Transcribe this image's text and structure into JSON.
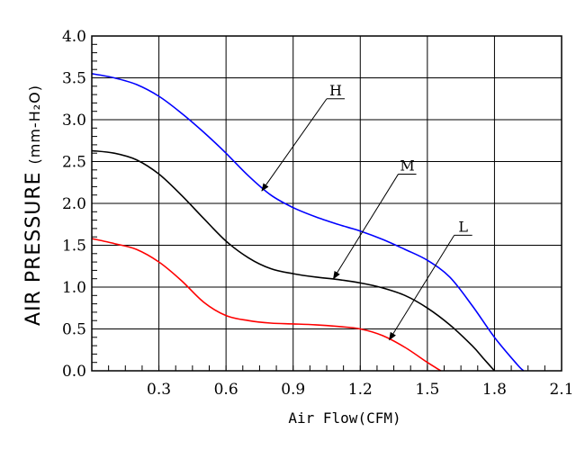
{
  "chart_data": {
    "type": "line",
    "xlabel": "Air Flow(CFM)",
    "ylabel_main": "AIR PRESSURE",
    "ylabel_unit": "(mm-H₂O)",
    "xlim": [
      0,
      2.1
    ],
    "ylim": [
      0,
      4.0
    ],
    "x_ticks": [
      "0.3",
      "0.6",
      "0.9",
      "1.2",
      "1.5",
      "1.8",
      "2.1"
    ],
    "x_tick_values": [
      0.3,
      0.6,
      0.9,
      1.2,
      1.5,
      1.8,
      2.1
    ],
    "y_ticks": [
      "0.0",
      "0.5",
      "1.0",
      "1.5",
      "2.0",
      "2.5",
      "3.0",
      "3.5",
      "4.0"
    ],
    "y_tick_values": [
      0.0,
      0.5,
      1.0,
      1.5,
      2.0,
      2.5,
      3.0,
      3.5,
      4.0
    ],
    "x_grid_step": 0.3,
    "y_grid_step": 0.5,
    "x_minor_step": 0.075,
    "y_minor_step": 0.1,
    "grid": true,
    "series": [
      {
        "name": "H",
        "color": "#0000ff",
        "points": [
          [
            0,
            3.55
          ],
          [
            0.1,
            3.5
          ],
          [
            0.2,
            3.42
          ],
          [
            0.3,
            3.28
          ],
          [
            0.4,
            3.08
          ],
          [
            0.5,
            2.85
          ],
          [
            0.6,
            2.6
          ],
          [
            0.7,
            2.33
          ],
          [
            0.8,
            2.1
          ],
          [
            0.9,
            1.95
          ],
          [
            1.0,
            1.84
          ],
          [
            1.1,
            1.75
          ],
          [
            1.2,
            1.67
          ],
          [
            1.3,
            1.57
          ],
          [
            1.4,
            1.45
          ],
          [
            1.5,
            1.32
          ],
          [
            1.6,
            1.12
          ],
          [
            1.7,
            0.78
          ],
          [
            1.8,
            0.4
          ],
          [
            1.9,
            0.08
          ],
          [
            1.93,
            0.0
          ]
        ],
        "callout_label": "H",
        "callout_label_at": [
          1.05,
          3.25
        ],
        "callout_arrow_tip": [
          0.76,
          2.15
        ]
      },
      {
        "name": "M",
        "color": "#000000",
        "points": [
          [
            0,
            2.63
          ],
          [
            0.1,
            2.6
          ],
          [
            0.2,
            2.52
          ],
          [
            0.3,
            2.35
          ],
          [
            0.4,
            2.1
          ],
          [
            0.5,
            1.82
          ],
          [
            0.6,
            1.55
          ],
          [
            0.7,
            1.35
          ],
          [
            0.8,
            1.22
          ],
          [
            0.9,
            1.16
          ],
          [
            1.0,
            1.12
          ],
          [
            1.1,
            1.09
          ],
          [
            1.2,
            1.05
          ],
          [
            1.3,
            0.99
          ],
          [
            1.4,
            0.9
          ],
          [
            1.5,
            0.75
          ],
          [
            1.6,
            0.55
          ],
          [
            1.7,
            0.3
          ],
          [
            1.75,
            0.15
          ],
          [
            1.8,
            0.0
          ]
        ],
        "callout_label": "M",
        "callout_label_at": [
          1.37,
          2.35
        ],
        "callout_arrow_tip": [
          1.08,
          1.1
        ]
      },
      {
        "name": "L",
        "color": "#ff0000",
        "points": [
          [
            0,
            1.58
          ],
          [
            0.1,
            1.52
          ],
          [
            0.2,
            1.45
          ],
          [
            0.3,
            1.3
          ],
          [
            0.4,
            1.08
          ],
          [
            0.5,
            0.82
          ],
          [
            0.6,
            0.66
          ],
          [
            0.7,
            0.6
          ],
          [
            0.8,
            0.57
          ],
          [
            0.9,
            0.56
          ],
          [
            1.0,
            0.55
          ],
          [
            1.1,
            0.53
          ],
          [
            1.2,
            0.5
          ],
          [
            1.3,
            0.42
          ],
          [
            1.4,
            0.28
          ],
          [
            1.5,
            0.1
          ],
          [
            1.56,
            0.0
          ]
        ],
        "callout_label": "L",
        "callout_label_at": [
          1.62,
          1.62
        ],
        "callout_arrow_tip": [
          1.33,
          0.37
        ]
      }
    ]
  }
}
